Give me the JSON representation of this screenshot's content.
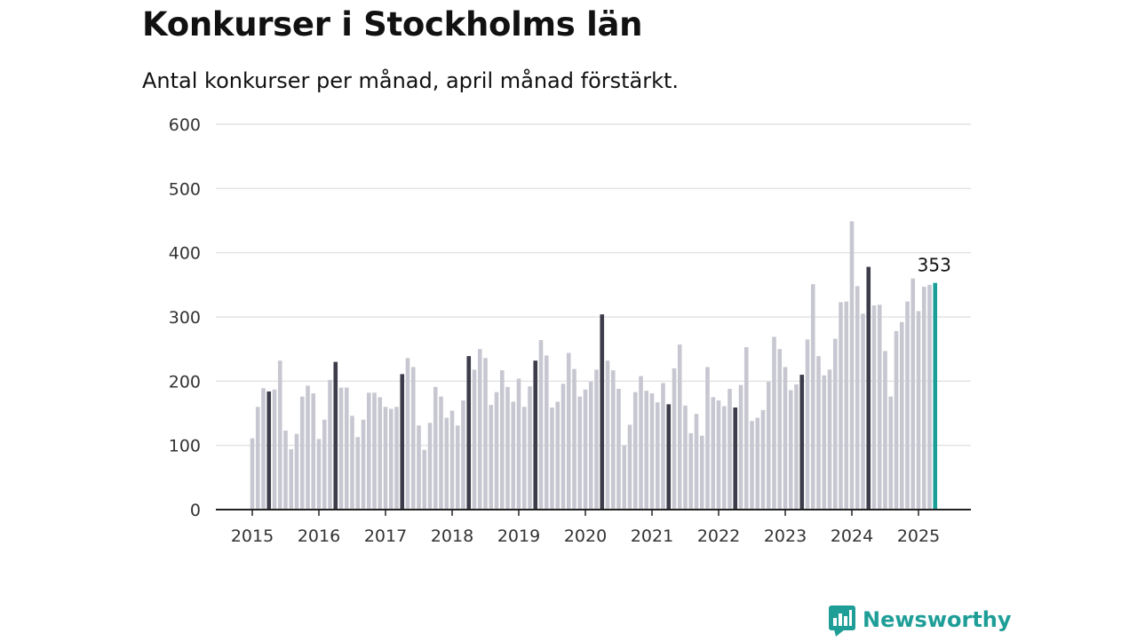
{
  "title": "Konkurser i Stockholms län",
  "subtitle": "Antal konkurser per månad, april månad förstärkt.",
  "brand": {
    "name": "Newsworthy",
    "color": "#1f9e98"
  },
  "colors": {
    "bar_default": "#c7c7d1",
    "bar_april": "#3c3c4a",
    "bar_latest": "#1a9e98",
    "grid": "#dddddd",
    "axis": "#222222"
  },
  "chart_data": {
    "type": "bar",
    "title": "Konkurser i Stockholms län",
    "subtitle": "Antal konkurser per månad, april månad förstärkt.",
    "xlabel": "",
    "ylabel": "",
    "ylim": [
      0,
      600
    ],
    "yticks": [
      0,
      100,
      200,
      300,
      400,
      500,
      600
    ],
    "xticks": [
      "2015",
      "2016",
      "2017",
      "2018",
      "2019",
      "2020",
      "2021",
      "2022",
      "2023",
      "2024",
      "2025"
    ],
    "grid": true,
    "highlight_month": "april",
    "start": "2015-01",
    "end": "2025-04",
    "last_value_label": "353",
    "values": [
      111,
      160,
      189,
      184,
      187,
      232,
      123,
      94,
      118,
      176,
      193,
      181,
      110,
      140,
      202,
      230,
      190,
      190,
      146,
      113,
      140,
      182,
      182,
      175,
      160,
      157,
      160,
      211,
      236,
      222,
      131,
      93,
      135,
      191,
      176,
      143,
      154,
      131,
      170,
      239,
      218,
      250,
      236,
      163,
      183,
      217,
      191,
      168,
      204,
      160,
      192,
      232,
      264,
      240,
      159,
      168,
      196,
      244,
      219,
      176,
      187,
      199,
      218,
      304,
      232,
      217,
      188,
      100,
      132,
      183,
      208,
      185,
      181,
      167,
      197,
      164,
      220,
      257,
      162,
      119,
      149,
      115,
      222,
      175,
      170,
      161,
      188,
      159,
      194,
      253,
      138,
      143,
      155,
      199,
      269,
      250,
      222,
      186,
      195,
      210,
      265,
      351,
      239,
      209,
      218,
      266,
      323,
      324,
      449,
      348,
      305,
      378,
      318,
      319,
      247,
      176,
      278,
      292,
      324,
      360,
      309,
      347,
      350,
      353
    ]
  }
}
